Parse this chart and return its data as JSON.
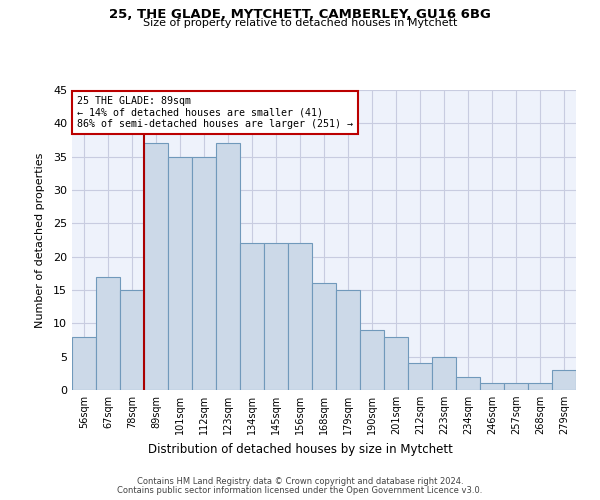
{
  "title1": "25, THE GLADE, MYTCHETT, CAMBERLEY, GU16 6BG",
  "title2": "Size of property relative to detached houses in Mytchett",
  "xlabel": "Distribution of detached houses by size in Mytchett",
  "ylabel": "Number of detached properties",
  "categories": [
    "56sqm",
    "67sqm",
    "78sqm",
    "89sqm",
    "101sqm",
    "112sqm",
    "123sqm",
    "134sqm",
    "145sqm",
    "156sqm",
    "168sqm",
    "179sqm",
    "190sqm",
    "201sqm",
    "212sqm",
    "223sqm",
    "234sqm",
    "246sqm",
    "257sqm",
    "268sqm",
    "279sqm"
  ],
  "values": [
    8,
    17,
    15,
    37,
    35,
    35,
    37,
    22,
    22,
    22,
    16,
    15,
    9,
    8,
    4,
    5,
    2,
    1,
    1,
    1,
    3
  ],
  "bar_color": "#ccd9e8",
  "bar_edge_color": "#7099bb",
  "property_index": 3,
  "property_label": "25 THE GLADE: 89sqm",
  "annotation_line1": "← 14% of detached houses are smaller (41)",
  "annotation_line2": "86% of semi-detached houses are larger (251) →",
  "vline_color": "#aa0000",
  "box_color": "#bb0000",
  "ylim": [
    0,
    45
  ],
  "yticks": [
    0,
    5,
    10,
    15,
    20,
    25,
    30,
    35,
    40,
    45
  ],
  "footer1": "Contains HM Land Registry data © Crown copyright and database right 2024.",
  "footer2": "Contains public sector information licensed under the Open Government Licence v3.0.",
  "bg_color": "#eef2fb",
  "grid_color": "#c8cce0"
}
